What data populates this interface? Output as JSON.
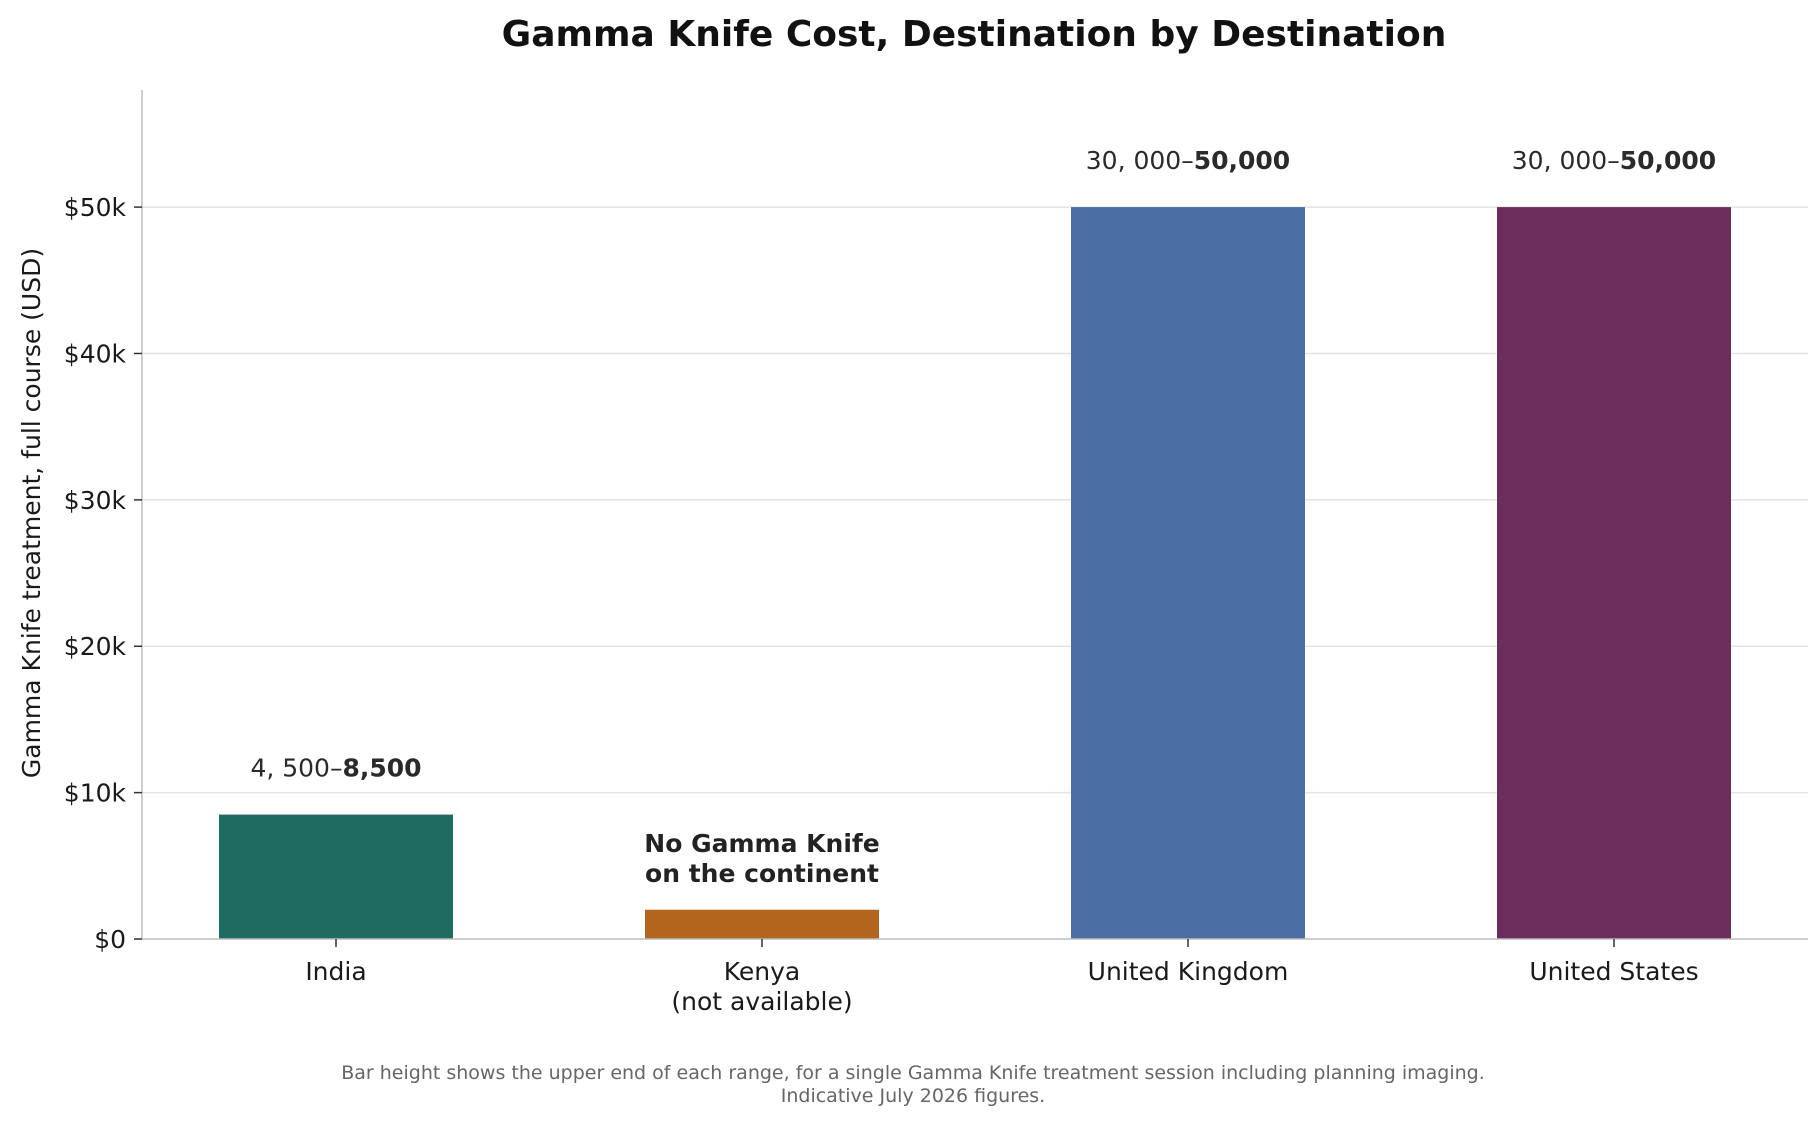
{
  "chart_data": {
    "type": "bar",
    "title": "Gamma Knife Cost, Destination by Destination",
    "xlabel": "",
    "ylabel": "Gamma Knife treatment, full course (USD)",
    "ylim": [
      0,
      58000
    ],
    "yticks": [
      0,
      10000,
      20000,
      30000,
      40000,
      50000
    ],
    "ytick_labels": [
      "$0",
      "$10k",
      "$20k",
      "$30k",
      "$40k",
      "$50k"
    ],
    "grid": "horizontal",
    "categories": [
      [
        "India"
      ],
      [
        "Kenya",
        "(not available)"
      ],
      [
        "United Kingdom"
      ],
      [
        "United States"
      ]
    ],
    "values": [
      8500,
      2000,
      50000,
      50000
    ],
    "colors": [
      "#1e6b62",
      "#b3651e",
      "#4b6fa3",
      "#6b2d5c"
    ],
    "value_labels": [
      {
        "low": "4, 500–",
        "high": "8,500"
      },
      null,
      {
        "low": "30, 000–",
        "high": "50,000"
      },
      {
        "low": "30, 000–",
        "high": "50,000"
      }
    ],
    "annotations": [
      {
        "category_index": 1,
        "lines": [
          "No Gamma Knife",
          "on the continent"
        ]
      }
    ],
    "footnote": [
      "Bar height shows the upper end of each range, for a single Gamma Knife treatment session including planning imaging.",
      "Indicative July 2026 figures."
    ]
  }
}
